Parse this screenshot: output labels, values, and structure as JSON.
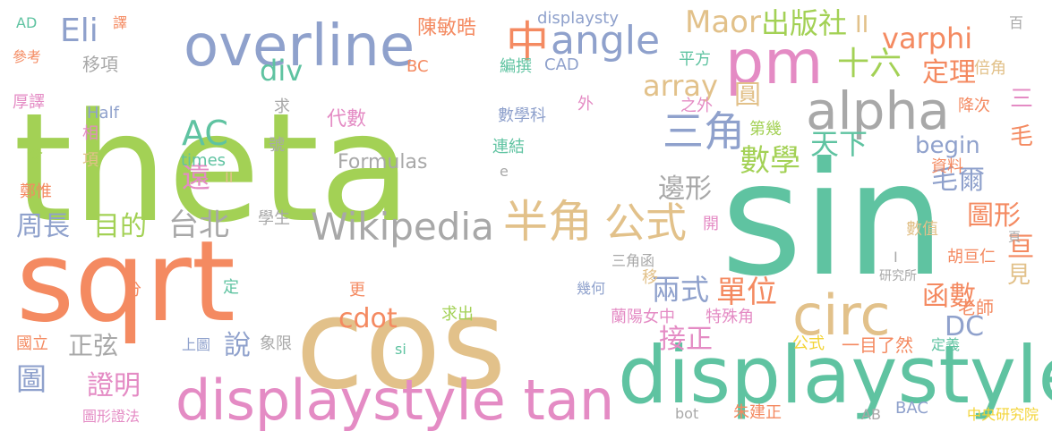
{
  "palette": {
    "green": "#a3d155",
    "teal": "#5fc3a1",
    "coral": "#f48a61",
    "sand": "#e2c18a",
    "slate": "#8fa1cc",
    "pink": "#e48bc4",
    "gray": "#a8a8a8",
    "lime": "#c9dc4f",
    "yellow": "#f3d437"
  },
  "words": [
    {
      "text": "theta",
      "color": "#a3d155"
    },
    {
      "text": "sin",
      "color": "#5fc3a1"
    },
    {
      "text": "sqrt",
      "color": "#f48a61"
    },
    {
      "text": "cos",
      "color": "#e2c18a"
    },
    {
      "text": "displaystyle",
      "color": "#5fc3a1"
    },
    {
      "text": "displaystyle tan",
      "color": "#e48bc4"
    },
    {
      "text": "overline",
      "color": "#8fa1cc"
    },
    {
      "text": "pm",
      "color": "#e48bc4"
    },
    {
      "text": "alpha",
      "color": "#a8a8a8"
    },
    {
      "text": "circ",
      "color": "#e2c18a"
    },
    {
      "text": "angle",
      "color": "#8fa1cc"
    },
    {
      "text": "中",
      "color": "#f48a61"
    },
    {
      "text": "Maor",
      "color": "#e2c18a"
    },
    {
      "text": "出版社",
      "color": "#a3d155"
    },
    {
      "text": "varphi",
      "color": "#f48a61"
    },
    {
      "text": "Eli",
      "color": "#8fa1cc"
    },
    {
      "text": "半角",
      "color": "#e2c18a"
    },
    {
      "text": "公式",
      "color": "#e2c18a"
    },
    {
      "text": "Wikipedia",
      "color": "#a8a8a8"
    },
    {
      "text": "三角",
      "color": "#8fa1cc"
    },
    {
      "text": "AC",
      "color": "#5fc3a1"
    },
    {
      "text": "div",
      "color": "#5fc3a1"
    },
    {
      "text": "array",
      "color": "#e2c18a"
    },
    {
      "text": "十六",
      "color": "#a3d155"
    },
    {
      "text": "定理",
      "color": "#f48a61"
    },
    {
      "text": "圓",
      "color": "#e2c18a"
    },
    {
      "text": "數學",
      "color": "#a3d155"
    },
    {
      "text": "天下",
      "color": "#5fc3a1"
    },
    {
      "text": "begin",
      "color": "#8fa1cc"
    },
    {
      "text": "毛",
      "color": "#f48a61"
    },
    {
      "text": "毛爾",
      "color": "#8fa1cc"
    },
    {
      "text": "遠",
      "color": "#e48bc4"
    },
    {
      "text": "邊形",
      "color": "#a8a8a8"
    },
    {
      "text": "圖形",
      "color": "#f48a61"
    },
    {
      "text": "周長",
      "color": "#8fa1cc"
    },
    {
      "text": "目的",
      "color": "#a3d155"
    },
    {
      "text": "台北",
      "color": "#a8a8a8"
    },
    {
      "text": "單位",
      "color": "#f48a61"
    },
    {
      "text": "兩式",
      "color": "#8fa1cc"
    },
    {
      "text": "cdot",
      "color": "#f48a61"
    },
    {
      "text": "函數",
      "color": "#f48a61"
    },
    {
      "text": "DC",
      "color": "#8fa1cc"
    },
    {
      "text": "正弦",
      "color": "#a8a8a8"
    },
    {
      "text": "接正",
      "color": "#e48bc4"
    },
    {
      "text": "說",
      "color": "#8fa1cc"
    },
    {
      "text": "圖",
      "color": "#8fa1cc"
    },
    {
      "text": "證明",
      "color": "#e48bc4"
    },
    {
      "text": "亘",
      "color": "#f48a61"
    },
    {
      "text": "見",
      "color": "#e2c18a"
    },
    {
      "text": "三",
      "color": "#e48bc4"
    },
    {
      "text": "II",
      "color": "#e2c18a"
    },
    {
      "text": "陳敏晧",
      "color": "#f48a61"
    },
    {
      "text": "displaysty",
      "color": "#8fa1cc"
    },
    {
      "text": "AD",
      "color": "#5fc3a1"
    },
    {
      "text": "譯",
      "color": "#f48a61"
    },
    {
      "text": "參考",
      "color": "#f48a61"
    },
    {
      "text": "移項",
      "color": "#a8a8a8"
    },
    {
      "text": "BC",
      "color": "#f48a61"
    },
    {
      "text": "編撰",
      "color": "#5fc3a1"
    },
    {
      "text": "CAD",
      "color": "#8fa1cc"
    },
    {
      "text": "平方",
      "color": "#5fc3a1"
    },
    {
      "text": "倍角",
      "color": "#e2c18a"
    },
    {
      "text": "百",
      "color": "#a8a8a8"
    },
    {
      "text": "厚譯",
      "color": "#e48bc4"
    },
    {
      "text": "Half",
      "color": "#8fa1cc"
    },
    {
      "text": "相",
      "color": "#e48bc4"
    },
    {
      "text": "項",
      "color": "#e2c18a"
    },
    {
      "text": "令",
      "color": "#a3d155"
    },
    {
      "text": "鄭惟",
      "color": "#f48a61"
    },
    {
      "text": "求",
      "color": "#a8a8a8"
    },
    {
      "text": "代數",
      "color": "#e48bc4"
    },
    {
      "text": "數學科",
      "color": "#8fa1cc"
    },
    {
      "text": "外",
      "color": "#e48bc4"
    },
    {
      "text": "之外",
      "color": "#e48bc4"
    },
    {
      "text": "降次",
      "color": "#f48a61"
    },
    {
      "text": "第幾",
      "color": "#a3d155"
    },
    {
      "text": "times",
      "color": "#5fc3a1"
    },
    {
      "text": "號",
      "color": "#a8a8a8"
    },
    {
      "text": "Formulas",
      "color": "#a8a8a8"
    },
    {
      "text": "連結",
      "color": "#5fc3a1"
    },
    {
      "text": "e",
      "color": "#a8a8a8"
    },
    {
      "text": "II",
      "color": "#e2c18a"
    },
    {
      "text": "資料",
      "color": "#f48a61"
    },
    {
      "text": "學生",
      "color": "#a8a8a8"
    },
    {
      "text": "開",
      "color": "#e48bc4"
    },
    {
      "text": "數值",
      "color": "#e2c18a"
    },
    {
      "text": "I",
      "color": "#a8a8a8"
    },
    {
      "text": "胡亘仁",
      "color": "#f48a61"
    },
    {
      "text": "頁",
      "color": "#a8a8a8"
    },
    {
      "text": "三角函",
      "color": "#a8a8a8"
    },
    {
      "text": "移",
      "color": "#e2c18a"
    },
    {
      "text": "研究所",
      "color": "#a8a8a8"
    },
    {
      "text": "幾何",
      "color": "#8fa1cc"
    },
    {
      "text": "分",
      "color": "#f48a61"
    },
    {
      "text": "定",
      "color": "#5fc3a1"
    },
    {
      "text": "更",
      "color": "#f48a61"
    },
    {
      "text": "求出",
      "color": "#a3d155"
    },
    {
      "text": "蘭陽女中",
      "color": "#e48bc4"
    },
    {
      "text": "老師",
      "color": "#f48a61"
    },
    {
      "text": "特殊角",
      "color": "#e48bc4"
    },
    {
      "text": "國立",
      "color": "#f48a61"
    },
    {
      "text": "上圖",
      "color": "#8fa1cc"
    },
    {
      "text": "象限",
      "color": "#a8a8a8"
    },
    {
      "text": "si",
      "color": "#5fc3a1"
    },
    {
      "text": "公式",
      "color": "#f3d437"
    },
    {
      "text": "一目了然",
      "color": "#f48a61"
    },
    {
      "text": "定義",
      "color": "#5fc3a1"
    },
    {
      "text": "圖形證法",
      "color": "#e48bc4"
    },
    {
      "text": "bot",
      "color": "#a8a8a8"
    },
    {
      "text": "朱建正",
      "color": "#f48a61"
    },
    {
      "text": "AB",
      "color": "#a8a8a8"
    },
    {
      "text": "BAC",
      "color": "#8fa1cc"
    },
    {
      "text": "中央研究院",
      "color": "#f3d437"
    }
  ]
}
